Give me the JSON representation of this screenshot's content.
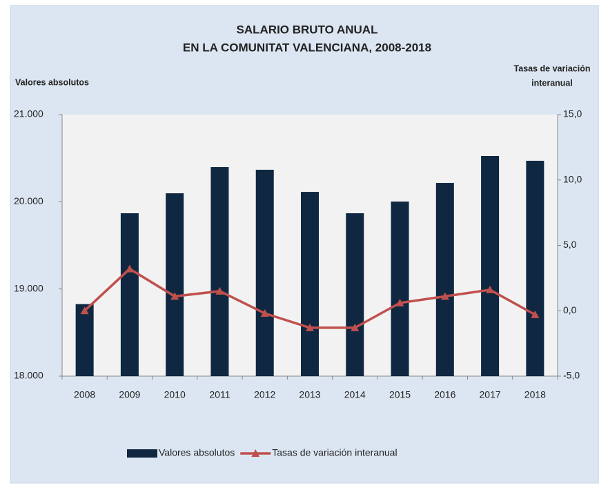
{
  "chart_data": {
    "type": "bar_line",
    "title": [
      "SALARIO BRUTO ANUAL",
      "EN LA COMUNITAT VALENCIANA, 2008-2018"
    ],
    "y_label": "Valores absolutos",
    "y2_label": [
      "Tasas de variación",
      "interanual"
    ],
    "categories": [
      "2008",
      "2009",
      "2010",
      "2011",
      "2012",
      "2013",
      "2014",
      "2015",
      "2016",
      "2017",
      "2018"
    ],
    "series": [
      {
        "name": "Valores absolutos",
        "color": "#0f2740",
        "kind": "bar",
        "values": [
          18826,
          19868,
          20097,
          20398,
          20367,
          20113,
          19868,
          20002,
          20216,
          20525,
          20470
        ]
      },
      {
        "name": "Tasas de variación interanual",
        "color": "#c0504d",
        "kind": "line",
        "axis": "y2",
        "values": [
          0.0,
          3.2,
          1.1,
          1.5,
          -0.2,
          -1.3,
          -1.3,
          0.6,
          1.1,
          1.6,
          -0.3
        ]
      }
    ],
    "ylim": [
      18000,
      21000
    ],
    "yticks": [
      {
        "value": 18000,
        "label": "18.000"
      },
      {
        "value": 19000,
        "label": "19.000"
      },
      {
        "value": 20000,
        "label": "20.000"
      },
      {
        "value": 21000,
        "label": "21.000"
      }
    ],
    "y2lim": [
      -5,
      15
    ],
    "y2ticks": [
      {
        "value": -5,
        "label": "-5,0"
      },
      {
        "value": 0,
        "label": "0,0"
      },
      {
        "value": 5,
        "label": "5,0"
      },
      {
        "value": 10,
        "label": "10,0"
      },
      {
        "value": 15,
        "label": "15,0"
      }
    ]
  }
}
